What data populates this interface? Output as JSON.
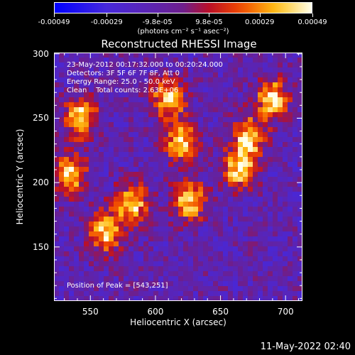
{
  "colorbar": {
    "ticks": [
      "-0.00049",
      "-0.00029",
      "-9.8e-05",
      "9.8e-05",
      "0.00029",
      "0.00049"
    ],
    "units": "(photons cm⁻² s⁻¹ asec⁻²)"
  },
  "chart_data": {
    "type": "heatmap",
    "title": "Reconstructed RHESSI Image",
    "xlabel": "Heliocentric X (arcsec)",
    "ylabel": "Heliocentric Y (arcsec)",
    "xlim": [
      522,
      713
    ],
    "ylim": [
      108,
      301
    ],
    "xticks": [
      550,
      600,
      650,
      700
    ],
    "yticks": [
      150,
      200,
      250,
      300
    ],
    "colorbar_range": [
      -0.00049,
      0.00049
    ],
    "colormap": "blue-purple-red-yellow-white",
    "annotations": {
      "time": "23-May-2012 00:17:32.000 to 00:20:24.000",
      "detectors": "Detectors: 3F 5F 6F 7F 8F, Att 0",
      "energy": "Energy Range: 25.0 - 50.0 keV",
      "method": "Clean    Total counts: 2.63E+06",
      "peak": "Position of Peak = [543,251]"
    },
    "bright_regions": [
      {
        "x": 543,
        "y": 251
      },
      {
        "x": 535,
        "y": 207
      },
      {
        "x": 562,
        "y": 162
      },
      {
        "x": 582,
        "y": 183
      },
      {
        "x": 610,
        "y": 265
      },
      {
        "x": 620,
        "y": 232
      },
      {
        "x": 626,
        "y": 186
      },
      {
        "x": 690,
        "y": 265
      },
      {
        "x": 672,
        "y": 235
      },
      {
        "x": 664,
        "y": 211
      }
    ]
  },
  "footer": {
    "date": "11-May-2022 02:40"
  }
}
